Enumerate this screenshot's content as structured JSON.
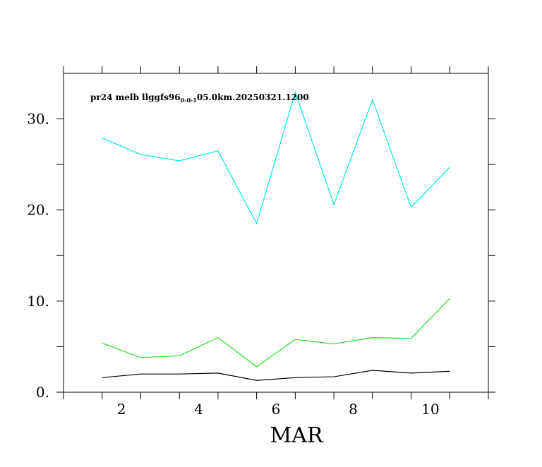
{
  "chart_data": {
    "type": "line",
    "title": "pr24 melb llggfs96",
    "title_subscript": "0-0-1",
    "title_suffix": "05.0km.20250321.1200",
    "xlabel": "MAR",
    "ylabel": "",
    "x": [
      2,
      3,
      4,
      5,
      6,
      7,
      8,
      9,
      10,
      11
    ],
    "xlim": [
      1,
      12
    ],
    "ylim": [
      0,
      35
    ],
    "xticks": [
      "2",
      "4",
      "6",
      "8",
      "10"
    ],
    "xtick_values": [
      2.5,
      4.5,
      6.5,
      8.5,
      10.5
    ],
    "yticks": [
      "0.",
      "10.",
      "20.",
      "30."
    ],
    "ytick_values": [
      0,
      10,
      20,
      30
    ],
    "grid": false,
    "series": [
      {
        "color": "#00e5ee",
        "values": [
          27.9,
          26.1,
          25.4,
          26.5,
          18.5,
          32.9,
          20.6,
          32.1,
          20.3,
          24.7
        ]
      },
      {
        "color": "#22dd22",
        "values": [
          5.4,
          3.8,
          4.0,
          6.0,
          2.8,
          5.8,
          5.3,
          6.0,
          5.9,
          10.3
        ]
      },
      {
        "color": "#000000",
        "values": [
          1.6,
          2.0,
          2.0,
          2.1,
          1.3,
          1.6,
          1.7,
          2.4,
          2.1,
          2.3
        ]
      }
    ]
  }
}
